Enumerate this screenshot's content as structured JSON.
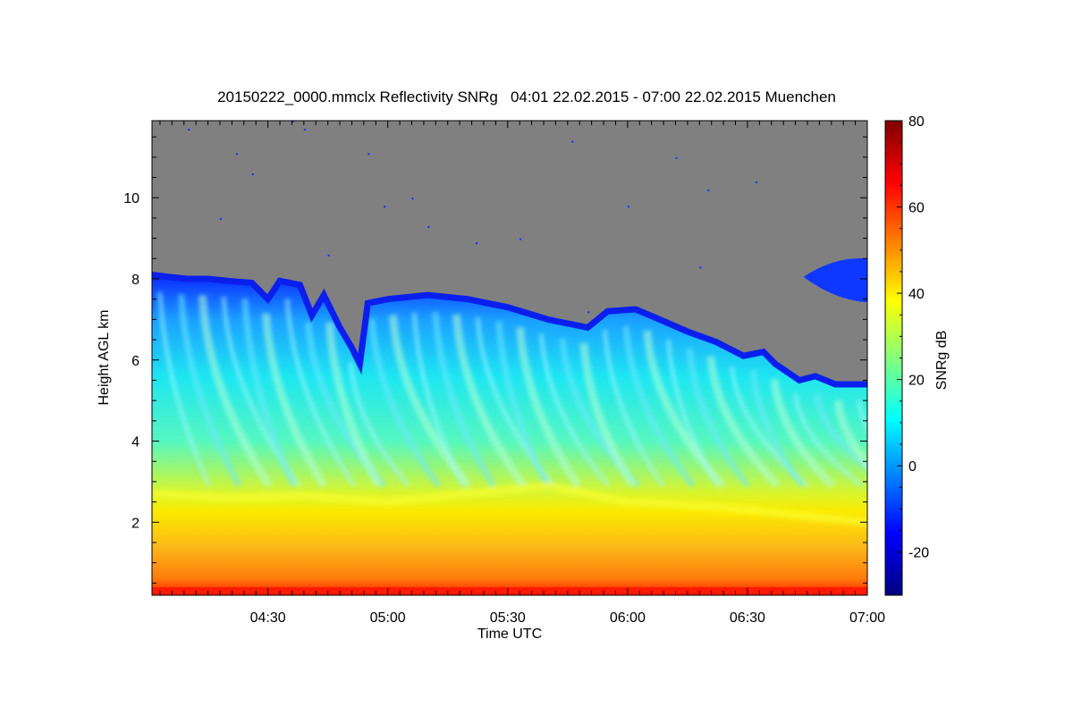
{
  "chart_data": {
    "type": "heatmap",
    "title": "20150222_0000.mmclx Reflectivity SNRg   04:01 22.02.2015 - 07:00 22.02.2015 Muenchen",
    "xlabel": "Time UTC",
    "ylabel": "Height AGL km",
    "x_range_minutes_utc": [
      241,
      420
    ],
    "x_ticks": [
      {
        "minute": 270,
        "label": "04:30"
      },
      {
        "minute": 300,
        "label": "05:00"
      },
      {
        "minute": 330,
        "label": "05:30"
      },
      {
        "minute": 360,
        "label": "06:00"
      },
      {
        "minute": 390,
        "label": "06:30"
      },
      {
        "minute": 420,
        "label": "07:00"
      }
    ],
    "y_range_km": [
      0.2,
      11.9
    ],
    "y_ticks": [
      {
        "value": 2,
        "label": "2"
      },
      {
        "value": 4,
        "label": "4"
      },
      {
        "value": 6,
        "label": "6"
      },
      {
        "value": 8,
        "label": "8"
      },
      {
        "value": 10,
        "label": "10"
      }
    ],
    "colorbar": {
      "label": "SNRg dB",
      "range": [
        -30,
        80
      ],
      "ticks": [
        {
          "value": -20,
          "label": "-20"
        },
        {
          "value": 0,
          "label": "0"
        },
        {
          "value": 20,
          "label": "20"
        },
        {
          "value": 40,
          "label": "40"
        },
        {
          "value": 60,
          "label": "60"
        },
        {
          "value": 80,
          "label": "80"
        }
      ],
      "colormap": "jet",
      "colors": [
        "#00007f",
        "#0000ff",
        "#00ffff",
        "#ffff00",
        "#ff0000",
        "#7f0000"
      ]
    },
    "no_signal_color": "#808080",
    "cloud_top_km": [
      {
        "minute": 241,
        "height": 8.1
      },
      {
        "minute": 245,
        "height": 8.05
      },
      {
        "minute": 250,
        "height": 8.0
      },
      {
        "minute": 255,
        "height": 8.0
      },
      {
        "minute": 260,
        "height": 7.95
      },
      {
        "minute": 266,
        "height": 7.9
      },
      {
        "minute": 270,
        "height": 7.5
      },
      {
        "minute": 273,
        "height": 7.95
      },
      {
        "minute": 278,
        "height": 7.85
      },
      {
        "minute": 281,
        "height": 7.1
      },
      {
        "minute": 284,
        "height": 7.6
      },
      {
        "minute": 288,
        "height": 6.8
      },
      {
        "minute": 291,
        "height": 6.3
      },
      {
        "minute": 293,
        "height": 5.9
      },
      {
        "minute": 295,
        "height": 7.4
      },
      {
        "minute": 300,
        "height": 7.5
      },
      {
        "minute": 310,
        "height": 7.6
      },
      {
        "minute": 320,
        "height": 7.5
      },
      {
        "minute": 330,
        "height": 7.3
      },
      {
        "minute": 340,
        "height": 7.0
      },
      {
        "minute": 350,
        "height": 6.8
      },
      {
        "minute": 355,
        "height": 7.2
      },
      {
        "minute": 362,
        "height": 7.25
      },
      {
        "minute": 368,
        "height": 7.0
      },
      {
        "minute": 375,
        "height": 6.7
      },
      {
        "minute": 382,
        "height": 6.45
      },
      {
        "minute": 389,
        "height": 6.1
      },
      {
        "minute": 394,
        "height": 6.2
      },
      {
        "minute": 397,
        "height": 5.9
      },
      {
        "minute": 403,
        "height": 5.5
      },
      {
        "minute": 407,
        "height": 5.6
      },
      {
        "minute": 412,
        "height": 5.4
      },
      {
        "minute": 420,
        "height": 5.4
      }
    ],
    "bright_band_top_km": [
      {
        "minute": 241,
        "height": 2.7
      },
      {
        "minute": 260,
        "height": 2.6
      },
      {
        "minute": 280,
        "height": 2.65
      },
      {
        "minute": 300,
        "height": 2.5
      },
      {
        "minute": 320,
        "height": 2.7
      },
      {
        "minute": 340,
        "height": 2.9
      },
      {
        "minute": 360,
        "height": 2.5
      },
      {
        "minute": 380,
        "height": 2.4
      },
      {
        "minute": 400,
        "height": 2.2
      },
      {
        "minute": 420,
        "height": 2.0
      }
    ],
    "upper_echo": {
      "minute_start": 404,
      "minute_end": 420,
      "height_bottom_km": 7.6,
      "height_top_km": 8.5
    }
  }
}
